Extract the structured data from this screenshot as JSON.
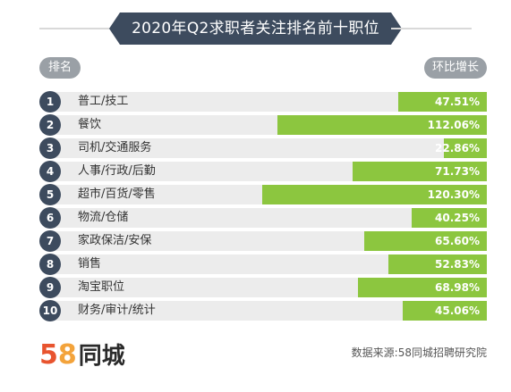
{
  "header": {
    "title": "2020年Q2求职者关注排名前十职位",
    "rank_label": "排名",
    "growth_label": "环比增长"
  },
  "footer": {
    "logo_digit_1": "5",
    "logo_digit_2": "8",
    "logo_name": "同城",
    "source": "数据来源:58同城招聘研究院"
  },
  "colors": {
    "bar": "#8cc63f",
    "badge": "#3d4b5e",
    "row_bg": "#ececec",
    "pill": "#9aa0a6"
  },
  "chart_data": {
    "type": "bar",
    "orientation": "horizontal",
    "title": "2020年Q2求职者关注排名前十职位",
    "xlabel": "环比增长",
    "ylabel": "排名",
    "xlim": [
      0,
      130
    ],
    "unit": "%",
    "grid": false,
    "categories": [
      "普工/技工",
      "餐饮",
      "司机/交通服务",
      "人事/行政/后勤",
      "超市/百货/零售",
      "物流/仓储",
      "家政保洁/安保",
      "销售",
      "淘宝职位",
      "财务/审计/统计"
    ],
    "ranks": [
      "1",
      "2",
      "3",
      "4",
      "5",
      "6",
      "7",
      "8",
      "9",
      "10"
    ],
    "values": [
      47.51,
      112.06,
      22.86,
      71.73,
      120.3,
      40.25,
      65.6,
      52.83,
      68.98,
      45.06
    ],
    "value_labels": [
      "47.51%",
      "112.06%",
      "22.86%",
      "71.73%",
      "120.30%",
      "40.25%",
      "65.60%",
      "52.83%",
      "68.98%",
      "45.06%"
    ]
  }
}
